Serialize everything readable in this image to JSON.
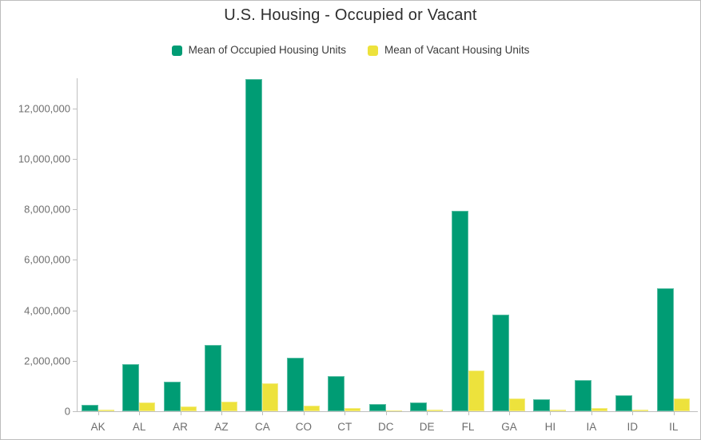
{
  "page": {
    "background": "#ffffff",
    "border_color": "#bdbdbd"
  },
  "colors": {
    "occupied_green": "#009C74",
    "vacant_yellow": "#EDE23C",
    "title_text": "#2e2e2e",
    "axis_text": "#6e6e6e",
    "axis_line": "#bfbfbf",
    "legend_text": "#3b3b3b"
  },
  "chart_data": {
    "type": "bar",
    "title": "U.S. Housing - Occupied or Vacant",
    "xlabel": "",
    "ylabel": "",
    "categories": [
      "AK",
      "AL",
      "AR",
      "AZ",
      "CA",
      "CO",
      "CT",
      "DC",
      "DE",
      "FL",
      "GA",
      "HI",
      "IA",
      "ID",
      "IL"
    ],
    "series": [
      {
        "name": "Mean of Occupied Housing Units",
        "color": "#009C74",
        "values": [
          250000,
          1870000,
          1160000,
          2630000,
          13170000,
          2110000,
          1380000,
          270000,
          350000,
          7950000,
          3830000,
          460000,
          1250000,
          630000,
          4890000
        ]
      },
      {
        "name": "Mean of Vacant Housing Units",
        "color": "#EDE23C",
        "values": [
          50000,
          350000,
          200000,
          370000,
          1110000,
          230000,
          130000,
          40000,
          60000,
          1620000,
          500000,
          70000,
          120000,
          70000,
          500000
        ]
      }
    ],
    "ylim": [
      0,
      13200000
    ],
    "yticks": [
      0,
      2000000,
      4000000,
      6000000,
      8000000,
      10000000,
      12000000
    ],
    "ytick_labels": [
      "0",
      "2,000,000",
      "4,000,000",
      "6,000,000",
      "8,000,000",
      "10,000,000",
      "12,000,000"
    ],
    "grid": false,
    "legend_position": "top"
  }
}
